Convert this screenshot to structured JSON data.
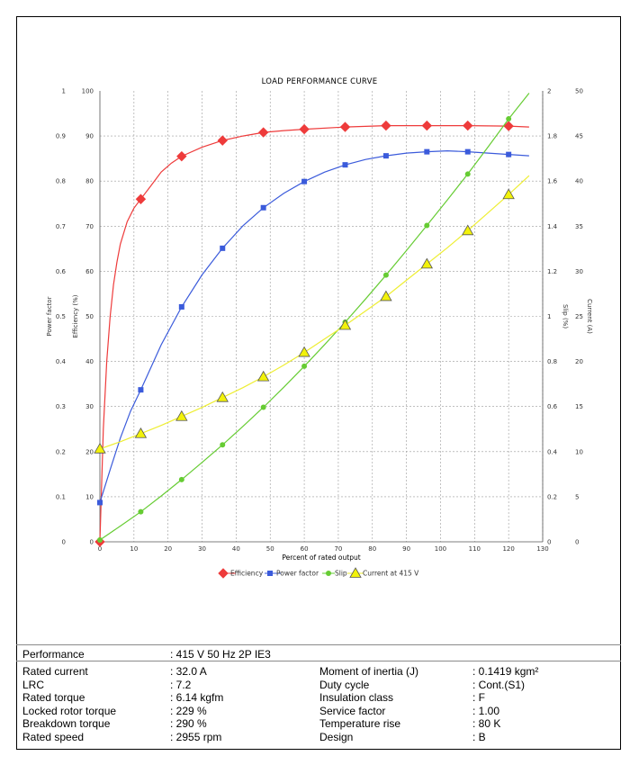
{
  "chart_data": {
    "type": "line",
    "title": "LOAD PERFORMANCE CURVE",
    "xlabel": "Percent of rated output",
    "x_ticks": [
      "0",
      "10",
      "20",
      "30",
      "40",
      "50",
      "60",
      "70",
      "80",
      "90",
      "100",
      "110",
      "120",
      "130"
    ],
    "xlim": [
      0,
      130
    ],
    "axes": {
      "power_factor": {
        "label": "Power factor",
        "range": [
          0,
          1
        ],
        "ticks": [
          "0",
          "0.1",
          "0.2",
          "0.3",
          "0.4",
          "0.5",
          "0.6",
          "0.7",
          "0.8",
          "0.9",
          "1"
        ]
      },
      "efficiency": {
        "label": "Efficiency (%)",
        "range": [
          0,
          100
        ],
        "ticks": [
          "0",
          "10",
          "20",
          "30",
          "40",
          "50",
          "60",
          "70",
          "80",
          "90",
          "100"
        ]
      },
      "slip": {
        "label": "Slip (%)",
        "range": [
          0,
          2
        ],
        "ticks": [
          "0",
          "0.2",
          "0.4",
          "0.6",
          "0.8",
          "1",
          "1.2",
          "1.4",
          "1.6",
          "1.8",
          "2"
        ]
      },
      "current": {
        "label": "Current (A)",
        "range": [
          0,
          50
        ],
        "ticks": [
          "0",
          "5",
          "10",
          "15",
          "20",
          "25",
          "30",
          "35",
          "40",
          "45",
          "50"
        ]
      }
    },
    "legend_position": "bottom",
    "grid": true,
    "series": [
      {
        "name": "Efficiency",
        "axis": "efficiency",
        "marker": "diamond",
        "color": "#ee3b3b",
        "points": [
          [
            0,
            0
          ],
          [
            12,
            76
          ],
          [
            24,
            85.5
          ],
          [
            36,
            89
          ],
          [
            48,
            90.8
          ],
          [
            60,
            91.5
          ],
          [
            72,
            92
          ],
          [
            84,
            92.3
          ],
          [
            96,
            92.3
          ],
          [
            108,
            92.3
          ],
          [
            120,
            92.2
          ]
        ],
        "curve": [
          [
            0,
            0
          ],
          [
            1,
            25
          ],
          [
            2,
            40
          ],
          [
            3,
            50
          ],
          [
            4,
            57
          ],
          [
            5,
            62
          ],
          [
            6,
            66
          ],
          [
            8,
            71
          ],
          [
            10,
            74
          ],
          [
            12,
            76
          ],
          [
            15,
            79
          ],
          [
            18,
            82
          ],
          [
            21,
            84
          ],
          [
            24,
            85.5
          ],
          [
            30,
            87.5
          ],
          [
            36,
            89
          ],
          [
            42,
            90
          ],
          [
            48,
            90.8
          ],
          [
            54,
            91.2
          ],
          [
            60,
            91.5
          ],
          [
            72,
            92
          ],
          [
            84,
            92.3
          ],
          [
            96,
            92.3
          ],
          [
            108,
            92.3
          ],
          [
            120,
            92.2
          ],
          [
            126,
            92
          ]
        ]
      },
      {
        "name": "Power factor",
        "axis": "power_factor",
        "marker": "square",
        "color": "#3b5bdb",
        "points": [
          [
            0,
            0.087
          ],
          [
            12,
            0.337
          ],
          [
            24,
            0.521
          ],
          [
            36,
            0.651
          ],
          [
            48,
            0.741
          ],
          [
            60,
            0.799
          ],
          [
            72,
            0.836
          ],
          [
            84,
            0.856
          ],
          [
            96,
            0.865
          ],
          [
            108,
            0.865
          ],
          [
            120,
            0.859
          ]
        ],
        "curve": [
          [
            0,
            0.087
          ],
          [
            3,
            0.16
          ],
          [
            6,
            0.23
          ],
          [
            9,
            0.29
          ],
          [
            12,
            0.337
          ],
          [
            18,
            0.437
          ],
          [
            24,
            0.521
          ],
          [
            30,
            0.592
          ],
          [
            36,
            0.651
          ],
          [
            42,
            0.701
          ],
          [
            48,
            0.741
          ],
          [
            54,
            0.773
          ],
          [
            60,
            0.799
          ],
          [
            66,
            0.82
          ],
          [
            72,
            0.836
          ],
          [
            78,
            0.848
          ],
          [
            84,
            0.856
          ],
          [
            90,
            0.862
          ],
          [
            96,
            0.865
          ],
          [
            102,
            0.867
          ],
          [
            108,
            0.865
          ],
          [
            114,
            0.862
          ],
          [
            120,
            0.859
          ],
          [
            126,
            0.856
          ]
        ]
      },
      {
        "name": "Slip",
        "axis": "slip",
        "marker": "circle",
        "color": "#66cc33",
        "points": [
          [
            0,
            0.008
          ],
          [
            12,
            0.133
          ],
          [
            24,
            0.276
          ],
          [
            36,
            0.43
          ],
          [
            48,
            0.597
          ],
          [
            60,
            0.779
          ],
          [
            72,
            0.974
          ],
          [
            84,
            1.183
          ],
          [
            96,
            1.403
          ],
          [
            108,
            1.631
          ],
          [
            120,
            1.876
          ]
        ],
        "curve": [
          [
            0,
            0.008
          ],
          [
            6,
            0.07
          ],
          [
            12,
            0.133
          ],
          [
            18,
            0.203
          ],
          [
            24,
            0.276
          ],
          [
            30,
            0.352
          ],
          [
            36,
            0.43
          ],
          [
            42,
            0.512
          ],
          [
            48,
            0.597
          ],
          [
            54,
            0.686
          ],
          [
            60,
            0.779
          ],
          [
            66,
            0.875
          ],
          [
            72,
            0.974
          ],
          [
            78,
            1.077
          ],
          [
            84,
            1.183
          ],
          [
            90,
            1.292
          ],
          [
            96,
            1.403
          ],
          [
            102,
            1.516
          ],
          [
            108,
            1.631
          ],
          [
            114,
            1.752
          ],
          [
            120,
            1.876
          ],
          [
            126,
            1.99
          ]
        ]
      },
      {
        "name": "Current at 415 V",
        "axis": "current",
        "marker": "triangle",
        "color": "#f2f20a",
        "points": [
          [
            0,
            10.3
          ],
          [
            12,
            12
          ],
          [
            24,
            13.9
          ],
          [
            36,
            16
          ],
          [
            48,
            18.3
          ],
          [
            60,
            21
          ],
          [
            72,
            24
          ],
          [
            84,
            27.2
          ],
          [
            96,
            30.8
          ],
          [
            108,
            34.5
          ],
          [
            120,
            38.5
          ]
        ],
        "curve": [
          [
            0,
            10.3
          ],
          [
            6,
            11.1
          ],
          [
            12,
            12
          ],
          [
            18,
            12.9
          ],
          [
            24,
            13.9
          ],
          [
            30,
            14.9
          ],
          [
            36,
            16
          ],
          [
            42,
            17.1
          ],
          [
            48,
            18.3
          ],
          [
            54,
            19.6
          ],
          [
            60,
            21
          ],
          [
            66,
            22.5
          ],
          [
            72,
            24
          ],
          [
            78,
            25.6
          ],
          [
            84,
            27.2
          ],
          [
            90,
            29
          ],
          [
            96,
            30.8
          ],
          [
            102,
            32.6
          ],
          [
            108,
            34.5
          ],
          [
            114,
            36.5
          ],
          [
            120,
            38.5
          ],
          [
            126,
            40.6
          ]
        ]
      }
    ]
  },
  "table": {
    "header_label": "Performance",
    "header_value": ": 415 V 50 Hz 2P IE3",
    "left": [
      {
        "label": "Rated current",
        "value": ": 32.0 A"
      },
      {
        "label": "LRC",
        "value": ": 7.2"
      },
      {
        "label": "Rated torque",
        "value": ": 6.14 kgfm"
      },
      {
        "label": "Locked rotor torque",
        "value": ": 229 %"
      },
      {
        "label": "Breakdown torque",
        "value": ": 290 %"
      },
      {
        "label": "Rated speed",
        "value": ": 2955 rpm"
      }
    ],
    "right": [
      {
        "label": "Moment of inertia (J)",
        "value": ": 0.1419 kgm²"
      },
      {
        "label": "Duty cycle",
        "value": ": Cont.(S1)"
      },
      {
        "label": "Insulation class",
        "value": ": F"
      },
      {
        "label": "Service factor",
        "value": ": 1.00"
      },
      {
        "label": "Temperature rise",
        "value": ": 80 K"
      },
      {
        "label": "Design",
        "value": ": B"
      }
    ]
  }
}
